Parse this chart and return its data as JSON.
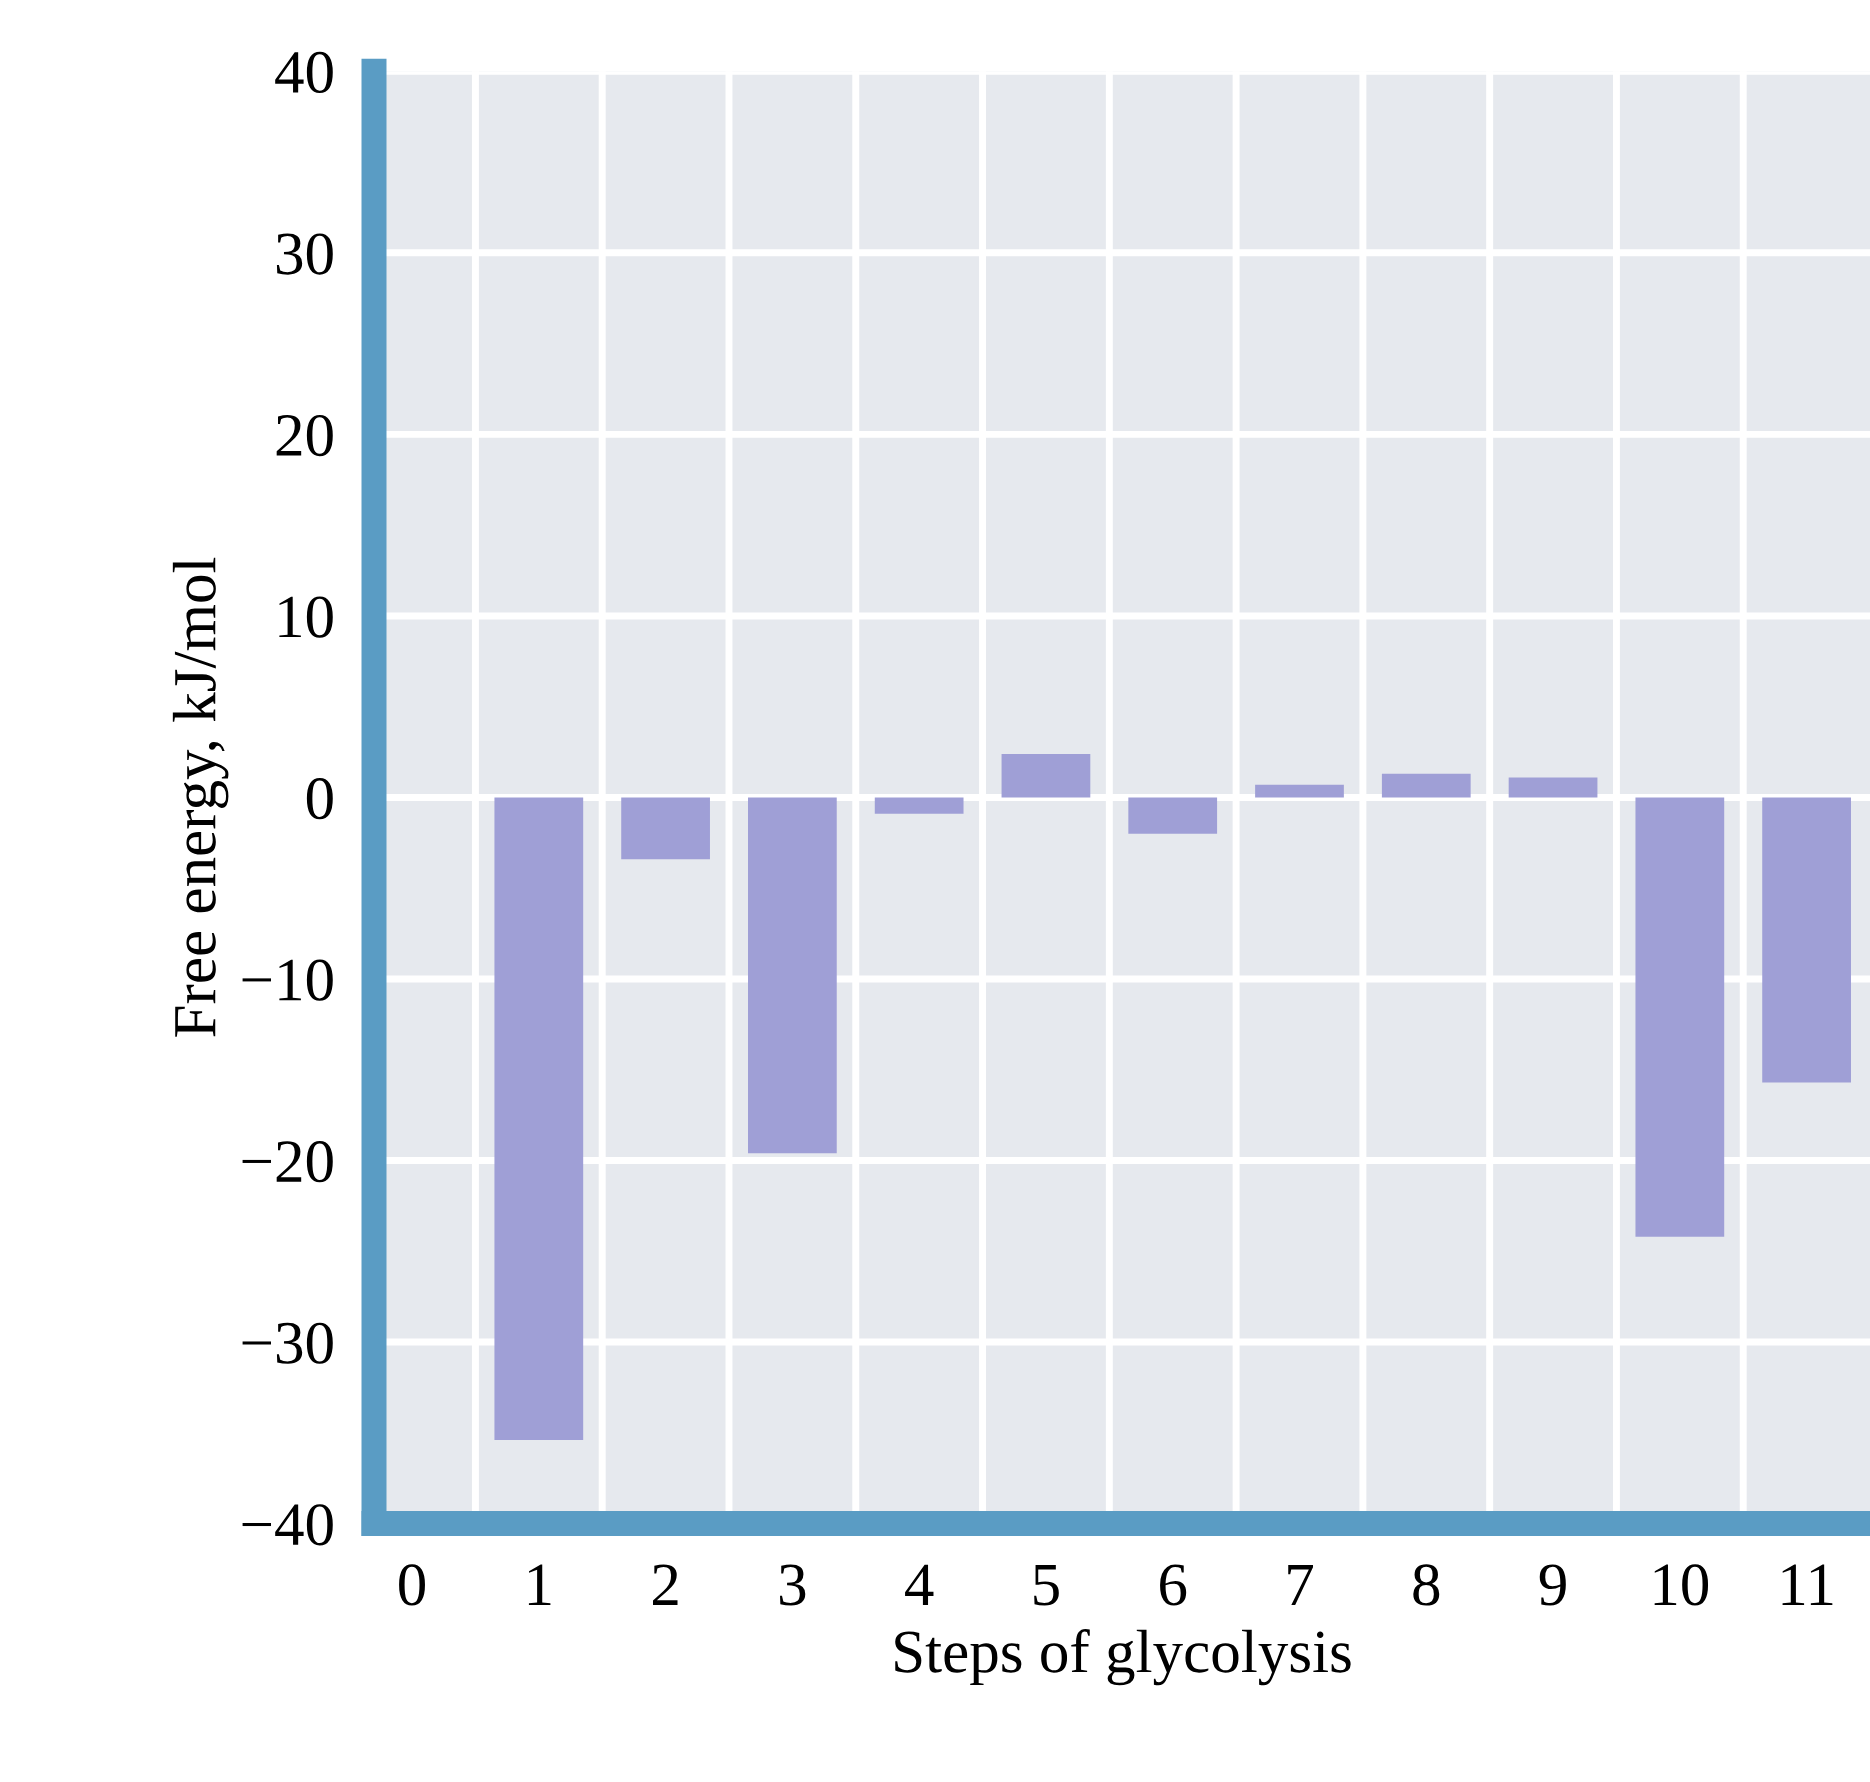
{
  "chart_data": {
    "type": "bar",
    "xlabel": "Steps of glycolysis",
    "ylabel": "Free energy, kJ/mol",
    "categories": [
      "0",
      "1",
      "2",
      "3",
      "4",
      "5",
      "6",
      "7",
      "8",
      "9",
      "10",
      "11"
    ],
    "values": [
      null,
      -35.4,
      -3.4,
      -19.6,
      -0.9,
      2.4,
      -2.0,
      0.7,
      1.3,
      1.1,
      -24.2,
      -15.7
    ],
    "color": "#9f9fd6",
    "ylim": [
      -40,
      40
    ],
    "yticks": [
      {
        "value": -40,
        "label": "−40"
      },
      {
        "value": -30,
        "label": "−30"
      },
      {
        "value": -20,
        "label": "−20"
      },
      {
        "value": -10,
        "label": "−10"
      },
      0,
      10,
      20,
      30,
      40
    ],
    "grid": true
  }
}
